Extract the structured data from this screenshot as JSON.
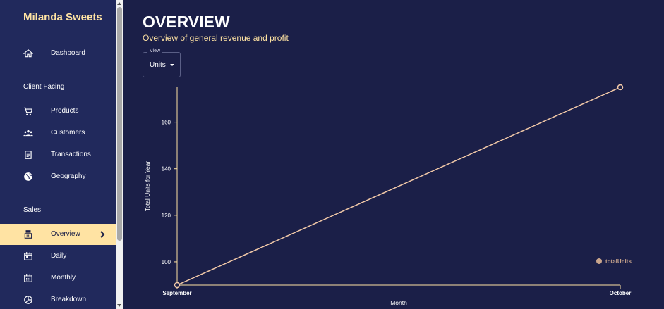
{
  "sidebar": {
    "brand": "Milanda Sweets",
    "dashboard": "Dashboard",
    "section_client": "Client Facing",
    "client_items": [
      "Products",
      "Customers",
      "Transactions",
      "Geography"
    ],
    "section_sales": "Sales",
    "sales_items": [
      "Overview",
      "Daily",
      "Monthly",
      "Breakdown"
    ],
    "active_item": "Overview",
    "accent_color": "#ffe3a3"
  },
  "header": {
    "title": "OVERVIEW",
    "subtitle": "Overview of general revenue and profit"
  },
  "view_select": {
    "legend": "View",
    "value": "Units"
  },
  "chart_data": {
    "type": "line",
    "x": [
      "September",
      "October"
    ],
    "series": [
      {
        "name": "totalUnits",
        "values": [
          90,
          175
        ],
        "color": "#f2c9a8"
      }
    ],
    "xlabel": "Month",
    "ylabel": "Total Units for Year",
    "ylim": [
      90,
      175
    ],
    "yticks": [
      100,
      120,
      140,
      160
    ],
    "grid": false,
    "legend_position": "bottom-right"
  }
}
